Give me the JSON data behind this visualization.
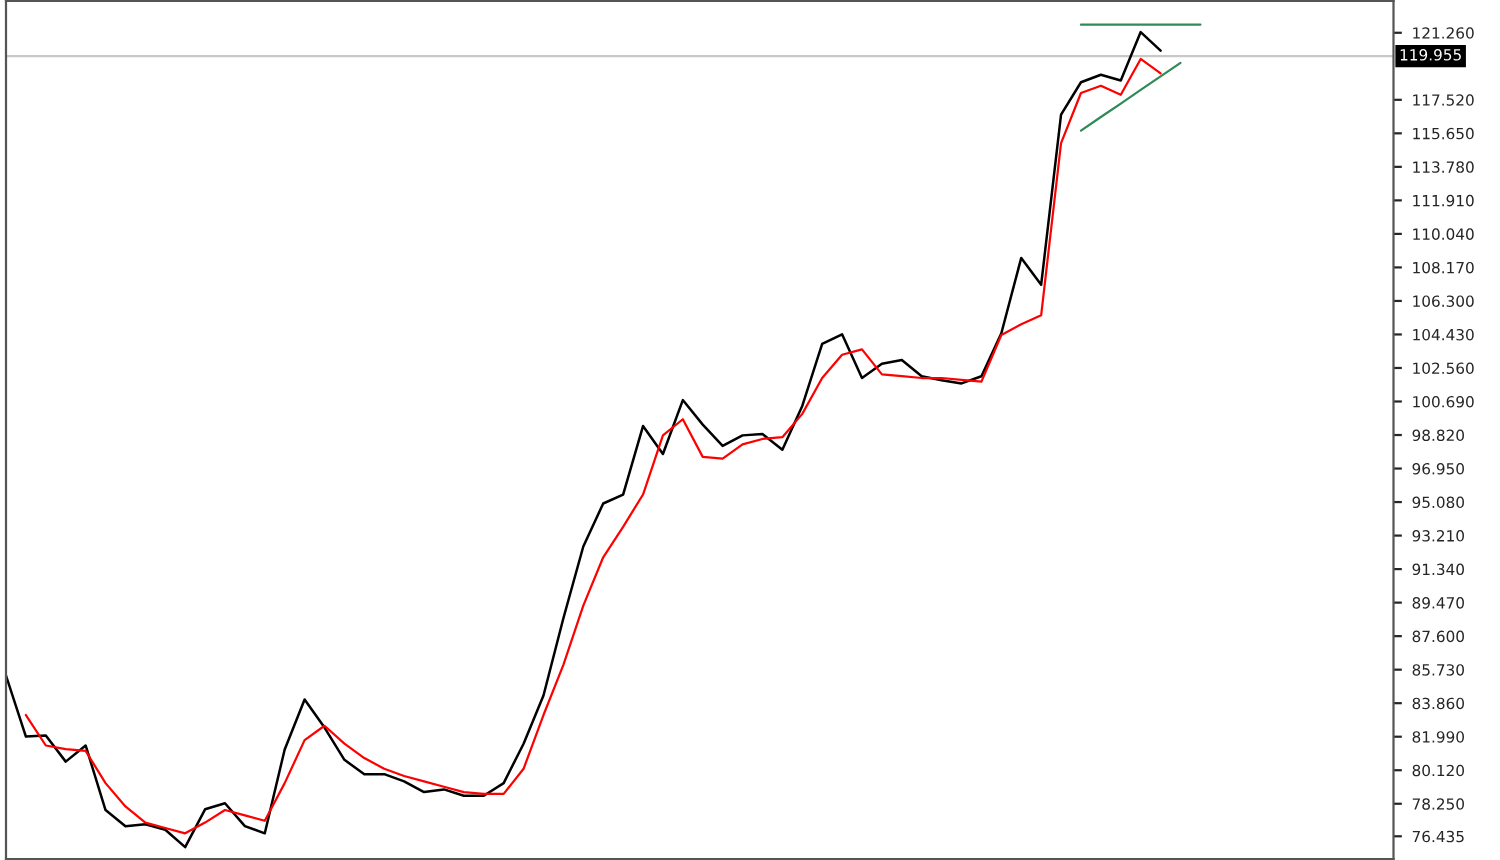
{
  "chart_data": {
    "type": "line",
    "categories": [
      null,
      null,
      null,
      null,
      null,
      null,
      null,
      null,
      null,
      null,
      null,
      null,
      null,
      null,
      null,
      null,
      null,
      null,
      null,
      null,
      null,
      null,
      null,
      null,
      null,
      null,
      null,
      null,
      null,
      null,
      null,
      null,
      null,
      null,
      null,
      null,
      null,
      null,
      null,
      null,
      null,
      null,
      null,
      null,
      null,
      null,
      null,
      null,
      null,
      null,
      null,
      null,
      null,
      null,
      null,
      null,
      null,
      null,
      null,
      null,
      null,
      null,
      null,
      null,
      null,
      null,
      null,
      null,
      null,
      null
    ],
    "ylim": [
      75.16,
      123.04
    ],
    "tick_labels": "y",
    "grid": false,
    "legend": false,
    "line_style": "solid",
    "marker": "none",
    "yticks": [
      {
        "value": 76.435,
        "label": "76.435"
      },
      {
        "value": 78.25,
        "label": "78.250"
      },
      {
        "value": 80.12,
        "label": "80.120"
      },
      {
        "value": 81.99,
        "label": "81.990"
      },
      {
        "value": 83.86,
        "label": "83.860"
      },
      {
        "value": 85.73,
        "label": "85.730"
      },
      {
        "value": 87.6,
        "label": "87.600"
      },
      {
        "value": 89.47,
        "label": "89.470"
      },
      {
        "value": 91.34,
        "label": "91.340"
      },
      {
        "value": 93.21,
        "label": "93.210"
      },
      {
        "value": 95.08,
        "label": "95.080"
      },
      {
        "value": 96.95,
        "label": "96.950"
      },
      {
        "value": 98.82,
        "label": "98.820"
      },
      {
        "value": 100.69,
        "label": "100.690"
      },
      {
        "value": 102.56,
        "label": "102.560"
      },
      {
        "value": 104.43,
        "label": "104.430"
      },
      {
        "value": 106.3,
        "label": "106.300"
      },
      {
        "value": 108.17,
        "label": "108.170"
      },
      {
        "value": 110.04,
        "label": "110.040"
      },
      {
        "value": 111.91,
        "label": "111.910"
      },
      {
        "value": 113.78,
        "label": "113.780"
      },
      {
        "value": 115.65,
        "label": "115.650"
      },
      {
        "value": 117.52,
        "label": "117.520"
      },
      {
        "value": 121.26,
        "label": "121.260"
      }
    ],
    "ref_lines": [
      {
        "axis": "y",
        "value": 119.955,
        "label": "119.955",
        "color": "#c8c8c8"
      }
    ],
    "series": [
      {
        "color": "#000000",
        "values": [
          85.4,
          82.0,
          82.06,
          80.6,
          81.5,
          77.9,
          77.0,
          77.1,
          76.8,
          75.83,
          77.94,
          78.28,
          77.0,
          76.6,
          81.28,
          84.07,
          82.5,
          80.7,
          79.9,
          79.9,
          79.5,
          78.9,
          79.05,
          78.7,
          78.7,
          79.4,
          81.6,
          84.29,
          88.6,
          92.6,
          95.0,
          95.5,
          99.32,
          97.76,
          100.77,
          99.4,
          98.21,
          98.8,
          98.88,
          98.0,
          100.44,
          103.9,
          104.44,
          102.0,
          102.8,
          103.0,
          102.1,
          101.88,
          101.7,
          102.1,
          104.5,
          108.7,
          107.2,
          116.69,
          118.5,
          118.92,
          118.6,
          121.3,
          120.26,
          null,
          null,
          null,
          null,
          null,
          null,
          null,
          null,
          null,
          null,
          null
        ]
      },
      {
        "color": "#ff0000",
        "values": [
          null,
          83.2,
          81.5,
          81.3,
          81.2,
          79.4,
          78.1,
          77.2,
          76.9,
          76.6,
          77.2,
          77.9,
          77.6,
          77.3,
          79.4,
          81.8,
          82.6,
          81.6,
          80.8,
          80.2,
          79.8,
          79.5,
          79.2,
          78.9,
          78.8,
          78.8,
          80.2,
          83.2,
          86.0,
          89.3,
          92.0,
          93.7,
          95.5,
          98.8,
          99.7,
          97.6,
          97.5,
          98.3,
          98.6,
          98.7,
          100.0,
          102.0,
          103.3,
          103.6,
          102.2,
          102.1,
          102.0,
          102.0,
          101.9,
          101.8,
          104.4,
          105.0,
          105.5,
          115.1,
          117.9,
          118.3,
          117.8,
          119.8,
          119.0,
          null,
          null,
          null,
          null,
          null,
          null,
          null,
          null,
          null,
          null,
          null
        ]
      },
      {
        "color": "#2e8b57",
        "values": [
          null,
          null,
          null,
          null,
          null,
          null,
          null,
          null,
          null,
          null,
          null,
          null,
          null,
          null,
          null,
          null,
          null,
          null,
          null,
          null,
          null,
          null,
          null,
          null,
          null,
          null,
          null,
          null,
          null,
          null,
          null,
          null,
          null,
          null,
          null,
          null,
          null,
          null,
          null,
          null,
          null,
          null,
          null,
          null,
          null,
          null,
          null,
          null,
          null,
          null,
          null,
          null,
          null,
          null,
          121.71,
          121.71,
          121.71,
          121.71,
          121.71,
          121.71,
          121.71,
          null,
          null,
          null,
          null,
          null,
          null,
          null,
          null,
          null
        ]
      },
      {
        "color": "#2e8b57",
        "values": [
          null,
          null,
          null,
          null,
          null,
          null,
          null,
          null,
          null,
          null,
          null,
          null,
          null,
          null,
          null,
          null,
          null,
          null,
          null,
          null,
          null,
          null,
          null,
          null,
          null,
          null,
          null,
          null,
          null,
          null,
          null,
          null,
          null,
          null,
          null,
          null,
          null,
          null,
          null,
          null,
          null,
          null,
          null,
          null,
          null,
          null,
          null,
          null,
          null,
          null,
          null,
          null,
          null,
          null,
          115.8,
          116.56,
          117.31,
          118.07,
          118.83,
          119.58,
          null,
          null,
          null,
          null,
          null,
          null,
          null,
          null,
          null,
          null
        ]
      }
    ]
  }
}
